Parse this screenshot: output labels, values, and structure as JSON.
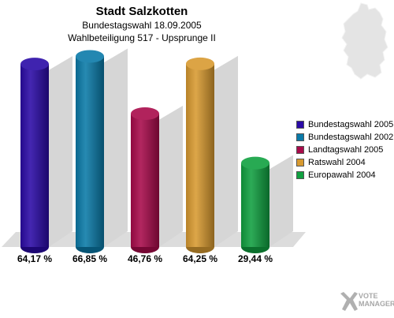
{
  "header": {
    "title": "Stadt Salzkotten",
    "subtitle1": "Bundestagswahl 18.09.2005",
    "subtitle2": "Wahlbeteiligung 517 - Upsprunge II"
  },
  "watermark": {
    "line1": "VOTE",
    "line2": "MANAGER"
  },
  "colors": {
    "floor": "#c8c8c8",
    "floorBack": "#dcdcdc"
  },
  "chart_data": {
    "type": "bar",
    "title": "Stadt Salzkotten",
    "xlabel": "",
    "ylabel": "",
    "ylim": [
      0,
      75
    ],
    "legend_position": "right",
    "categories": [
      "Bundestagswahl 2005",
      "Bundestagswahl 2002",
      "Landtagswahl 2005",
      "Ratswahl 2004",
      "Europawahl 2004"
    ],
    "values": [
      64.17,
      66.85,
      46.76,
      64.25,
      29.44
    ],
    "value_labels": [
      "64,17 %",
      "66,85 %",
      "46,76 %",
      "64,25 %",
      "29,44 %"
    ],
    "colors": [
      "#2a0aa6",
      "#0a7aa8",
      "#a80a4a",
      "#d89a30",
      "#10a040"
    ]
  }
}
